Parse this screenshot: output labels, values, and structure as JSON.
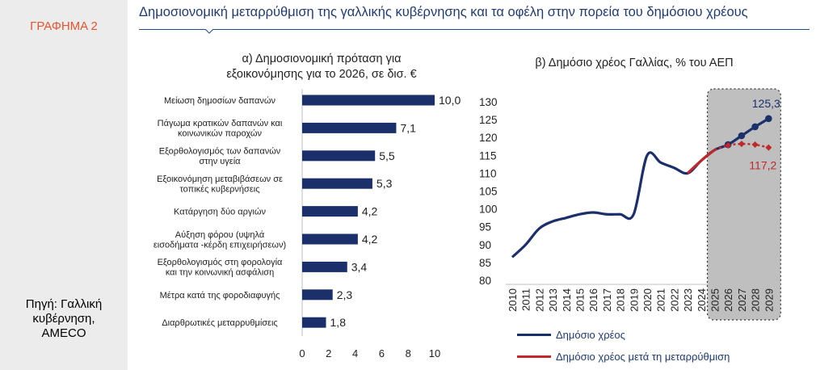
{
  "figure_label": "ΓΡΑΦΗΜΑ 2",
  "header_title": "Δημοσιονομική μεταρρύθμιση της γαλλικής κυβέρνησης και τα οφέλη στην πορεία του δημόσιου χρέους",
  "source_lines": [
    "Πηγή: Γαλλική",
    "κυβέρνηση,",
    "AMECO"
  ],
  "colors": {
    "navy": "#1b2f6b",
    "red": "#c0282a",
    "accent": "#e8542f",
    "shade": "#bfbfbf"
  },
  "chart_data": [
    {
      "type": "bar",
      "orientation": "horizontal",
      "title_lines": [
        "α) Δημοσιονομική πρόταση για",
        "εξοικονόμησης για το 2026, σε δισ. €"
      ],
      "categories": [
        [
          "Μείωση δημοσίων δαπανών"
        ],
        [
          "Πάγωμα κρατικών δαπανών και",
          "κοινωνικών παροχών"
        ],
        [
          "Εξορθολογισμός των δαπανών",
          "στην υγεία"
        ],
        [
          "Εξοικονόμηση μεταβιβάσεων σε",
          "τοπικές κυβερνήσεις"
        ],
        [
          "Κατάργηση δύο αργιών"
        ],
        [
          "Αύξηση φόρου (υψηλά",
          "εισοδήματα -κέρδη επιχειρήσεων)"
        ],
        [
          "Εξορθολογισμός στη φορολογία",
          "και την κοινωνική ασφάλιση"
        ],
        [
          "Μέτρα κατά της φοροδιαφυγής"
        ],
        [
          "Διαρθρωτικές μεταρρυθμίσεις"
        ]
      ],
      "values": [
        10.0,
        7.1,
        5.5,
        5.3,
        4.2,
        4.2,
        3.4,
        2.3,
        1.8
      ],
      "value_labels": [
        "10,0",
        "7,1",
        "5,5",
        "5,3",
        "4,2",
        "4,2",
        "3,4",
        "2,3",
        "1,8"
      ],
      "xlim": [
        0,
        10
      ],
      "xticks": [
        0,
        2,
        4,
        6,
        8,
        10
      ]
    },
    {
      "type": "line",
      "title": "β) Δημόσιο χρέος Γαλλίας, % του ΑΕΠ",
      "ylim": [
        80,
        130
      ],
      "yticks": [
        80,
        85,
        90,
        95,
        100,
        105,
        110,
        115,
        120,
        125,
        130
      ],
      "x_categories": [
        "2010",
        "2011",
        "2012",
        "2013",
        "2014",
        "2015",
        "2016",
        "2017",
        "2018",
        "2019",
        "2020",
        "2021",
        "2022",
        "2023",
        "2024",
        "2025",
        "2026",
        "2027",
        "2028",
        "2029"
      ],
      "shaded_from": "2025",
      "series": [
        {
          "name": "Δημόσιο χρέος",
          "x": [
            2010,
            2011,
            2012,
            2013,
            2014,
            2015,
            2016,
            2017,
            2018,
            2019,
            2020,
            2021,
            2022,
            2023,
            2024,
            2025,
            2026,
            2027,
            2028,
            2029
          ],
          "values": [
            86.5,
            90.0,
            94.5,
            96.5,
            97.5,
            98.5,
            99.0,
            98.5,
            98.5,
            98.5,
            115.0,
            113.0,
            111.5,
            110.0,
            113.5,
            116.5,
            118.0,
            120.5,
            123.0,
            125.3
          ],
          "markers_from": 2026,
          "end_label": "125,3"
        },
        {
          "name": "Δημόσιο χρέος μετά τη μεταρρύθμιση",
          "x": [
            2023,
            2024,
            2025,
            2026,
            2027,
            2028,
            2029
          ],
          "values": [
            110.0,
            113.5,
            116.5,
            117.8,
            118.2,
            118.0,
            117.2
          ],
          "markers_from": 2026,
          "end_label": "117,2"
        }
      ]
    }
  ]
}
